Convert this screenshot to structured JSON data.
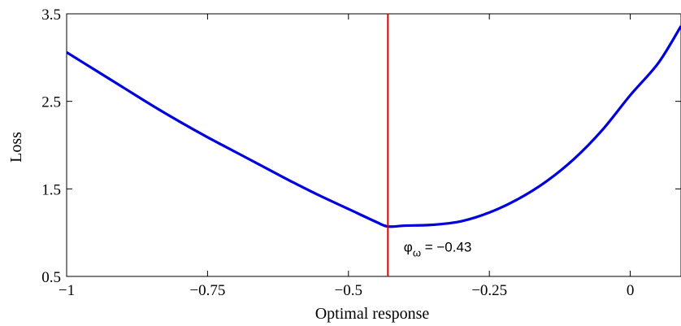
{
  "chart_data": {
    "type": "line",
    "xlabel": "Optimal response",
    "ylabel": "Loss",
    "xlim": [
      -1,
      0.09
    ],
    "ylim": [
      0.5,
      3.5
    ],
    "x_ticks": [
      -1,
      -0.75,
      -0.5,
      -0.25,
      0
    ],
    "x_tick_labels": [
      "−1",
      "−0.75",
      "−0.5",
      "−0.25",
      "0"
    ],
    "y_ticks": [
      0.5,
      1.5,
      2.5,
      3.5
    ],
    "y_tick_labels": [
      "0.5",
      "1.5",
      "2.5",
      "3.5"
    ],
    "grid": false,
    "series": [
      {
        "color": "#0000dd",
        "x": [
          -1.0,
          -0.95,
          -0.9,
          -0.85,
          -0.8,
          -0.75,
          -0.7,
          -0.65,
          -0.6,
          -0.55,
          -0.5,
          -0.45,
          -0.43,
          -0.4,
          -0.35,
          -0.3,
          -0.25,
          -0.2,
          -0.15,
          -0.1,
          -0.05,
          0.0,
          0.05,
          0.09
        ],
        "y": [
          3.06,
          2.86,
          2.66,
          2.46,
          2.27,
          2.09,
          1.92,
          1.75,
          1.58,
          1.42,
          1.27,
          1.12,
          1.07,
          1.08,
          1.09,
          1.13,
          1.23,
          1.38,
          1.58,
          1.84,
          2.17,
          2.57,
          2.94,
          3.36
        ]
      }
    ],
    "vline": {
      "x": -0.43,
      "color": "#dd0000"
    },
    "annotation": {
      "symbol": "φ",
      "subscript": "ω",
      "text": " = −0.43",
      "x": -0.425,
      "y": 0.85
    }
  }
}
